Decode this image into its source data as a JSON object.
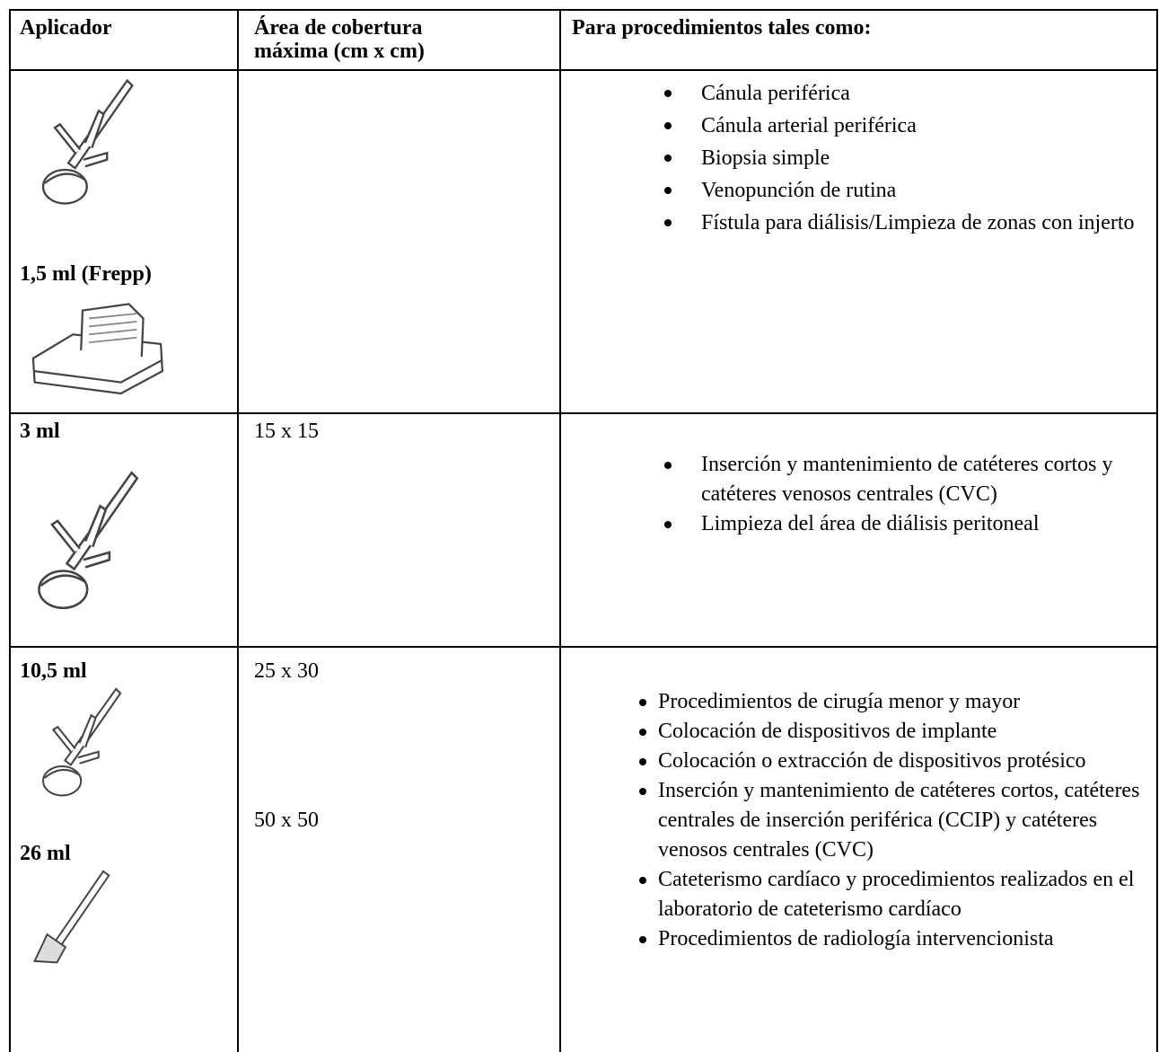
{
  "table": {
    "header": {
      "applicator": "Aplicador",
      "coverage": [
        "Área de cobertura",
        "máxima (cm x cm)"
      ],
      "procedures": "Para procedimientos tales como:"
    },
    "rows": [
      {
        "applicators": [
          "1,5 ml (Frepp)"
        ],
        "areas": [],
        "procedures": [
          "Cánula periférica",
          "Cánula arterial periférica",
          "Biopsia simple",
          "Venopunción de rutina",
          "Fístula para diálisis/Limpieza de zonas con injerto"
        ]
      },
      {
        "applicators": [
          "3 ml"
        ],
        "areas": [
          "15 x 15"
        ],
        "procedures": [
          "Inserción y mantenimiento de catéteres cortos y catéteres venosos centrales (CVC)",
          "Limpieza del área de diálisis peritoneal"
        ]
      },
      {
        "applicators": [
          "10,5 ml",
          "26 ml"
        ],
        "areas": [
          "25 x 30",
          "50 x 50"
        ],
        "procedures": [
          "Procedimientos de cirugía menor y mayor",
          "Colocación de dispositivos de implante",
          "Colocación o extracción de dispositivos protésico",
          "Inserción y mantenimiento de catéteres cortos, catéteres centrales de inserción periférica (CCIP) y catéteres venosos centrales (CVC)",
          "Cateterismo cardíaco y procedimientos realizados en el laboratorio de cateterismo cardíaco",
          "Procedimientos de radiología intervencionista"
        ]
      }
    ]
  }
}
